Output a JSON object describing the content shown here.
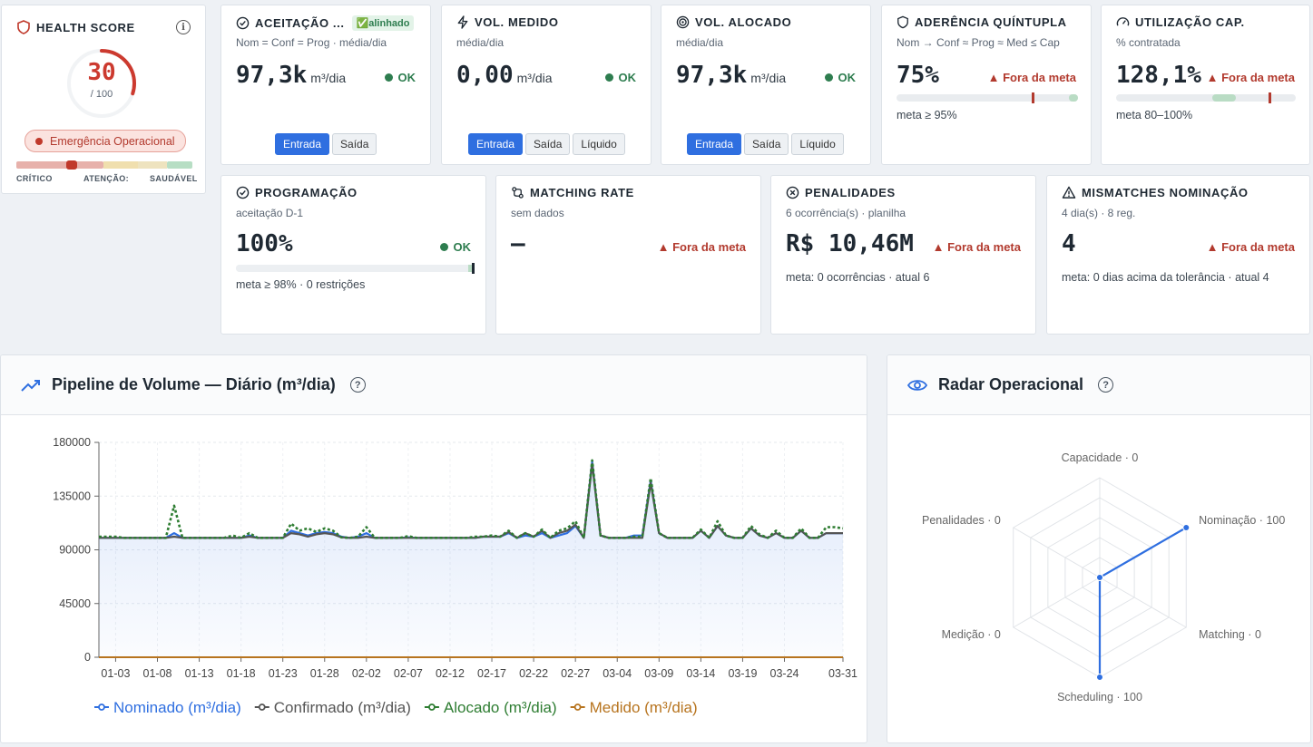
{
  "health": {
    "title": "HEALTH SCORE",
    "score": "30",
    "max": "/ 100",
    "score_fraction": 0.3,
    "status": "Emergência Operacional",
    "scale_labels": [
      "CRÍTICO",
      "ATENÇÃO:",
      "SAUDÁVEL"
    ],
    "colors": {
      "critical": "#d9534f",
      "ring": "#cc3a2f"
    }
  },
  "kpis": {
    "aceitacao": {
      "title": "ACEITAÇÃO ...",
      "badge": "✅alinhado",
      "subtitle": "Nom = Conf = Prog · média/dia",
      "value": "97,3k",
      "unit": "m³/dia",
      "status": "OK",
      "tabs": [
        "Entrada",
        "Saída"
      ],
      "active_tab": "Entrada"
    },
    "vol_medido": {
      "title": "VOL. MEDIDO",
      "subtitle": "média/dia",
      "value": "0,00",
      "unit": "m³/dia",
      "status": "OK",
      "tabs": [
        "Entrada",
        "Saída",
        "Líquido"
      ],
      "active_tab": "Entrada"
    },
    "vol_alocado": {
      "title": "VOL. ALOCADO",
      "subtitle": "média/dia",
      "value": "97,3k",
      "unit": "m³/dia",
      "status": "OK",
      "tabs": [
        "Entrada",
        "Saída",
        "Líquido"
      ],
      "active_tab": "Entrada"
    },
    "aderencia": {
      "title": "ADERÊNCIA QUÍNTUPLA",
      "subtitle": "Nom → Conf ≈ Prog ≈ Med ≤ Cap",
      "value": "75%",
      "status": "▲ Fora da meta",
      "meta": "meta ≥ 95%",
      "progress_value": 0.75,
      "target_min": 0.95,
      "target_max": 1.0
    },
    "utilizacao": {
      "title": "UTILIZAÇÃO CAP.",
      "subtitle": "% contratada",
      "value": "128,1%",
      "status": "▲ Fora da meta",
      "meta": "meta 80–100%",
      "progress_value": 1.281,
      "target_min": 0.8,
      "target_max": 1.0
    },
    "programacao": {
      "title": "PROGRAMAÇÃO",
      "subtitle": "aceitação D-1",
      "value": "100%",
      "status": "OK",
      "meta": "meta ≥ 98% · 0 restrições",
      "progress_value": 1.0,
      "target_min": 0.98
    },
    "matching": {
      "title": "MATCHING RATE",
      "subtitle": "sem dados",
      "value": "—",
      "status": "▲ Fora da meta"
    },
    "penalidades": {
      "title": "PENALIDADES",
      "subtitle": "6 ocorrência(s) · planilha",
      "value": "R$ 10,46M",
      "status": "▲ Fora da meta",
      "meta": "meta: 0 ocorrências · atual 6"
    },
    "mismatches": {
      "title": "MISMATCHES NOMINAÇÃO",
      "subtitle": "4 dia(s) · 8 reg.",
      "value": "4",
      "status": "▲ Fora da meta",
      "meta": "meta: 0 dias acima da tolerância · atual 4"
    }
  },
  "pipeline": {
    "title": "Pipeline de Volume — Diário (m³/dia)",
    "help": "?"
  },
  "radar": {
    "title": "Radar Operacional",
    "help": "?"
  },
  "chart_data": [
    {
      "type": "line",
      "x": [
        "01-01",
        "01-02",
        "01-03",
        "01-04",
        "01-05",
        "01-06",
        "01-07",
        "01-08",
        "01-09",
        "01-10",
        "01-11",
        "01-12",
        "01-13",
        "01-14",
        "01-15",
        "01-16",
        "01-17",
        "01-18",
        "01-19",
        "01-20",
        "01-21",
        "01-22",
        "01-23",
        "01-24",
        "01-25",
        "01-26",
        "01-27",
        "01-28",
        "01-29",
        "01-30",
        "01-31",
        "02-01",
        "02-02",
        "02-03",
        "02-04",
        "02-05",
        "02-06",
        "02-07",
        "02-08",
        "02-09",
        "02-10",
        "02-11",
        "02-12",
        "02-13",
        "02-14",
        "02-15",
        "02-16",
        "02-17",
        "02-18",
        "02-19",
        "02-20",
        "02-21",
        "02-22",
        "02-23",
        "02-24",
        "02-25",
        "02-26",
        "02-27",
        "02-28",
        "03-01",
        "03-02",
        "03-03",
        "03-04",
        "03-05",
        "03-06",
        "03-07",
        "03-08",
        "03-09",
        "03-10",
        "03-11",
        "03-12",
        "03-13",
        "03-14",
        "03-15",
        "03-16",
        "03-17",
        "03-18",
        "03-19",
        "03-20",
        "03-21",
        "03-22",
        "03-23",
        "03-24",
        "03-25",
        "03-26",
        "03-27",
        "03-28",
        "03-29",
        "03-30",
        "03-31"
      ],
      "x_tick_labels": [
        "01-03",
        "01-08",
        "01-13",
        "01-18",
        "01-23",
        "01-28",
        "02-02",
        "02-07",
        "02-12",
        "02-17",
        "02-22",
        "02-27",
        "03-04",
        "03-09",
        "03-14",
        "03-19",
        "03-24",
        "03-31"
      ],
      "ylim": [
        0,
        180000
      ],
      "y_ticks": [
        0,
        45000,
        90000,
        135000,
        180000
      ],
      "y_tick_labels": [
        "0",
        "45000",
        "90000",
        "135000",
        "180000"
      ],
      "grid": true,
      "legend": "bottom",
      "series": [
        {
          "name": "Nominado (m³/dia)",
          "color": "#2f6fe0",
          "values": [
            100000,
            100000,
            100000,
            100000,
            100000,
            100000,
            100000,
            100000,
            100000,
            104000,
            100000,
            100000,
            100000,
            100000,
            100000,
            100000,
            100000,
            100000,
            102000,
            100000,
            100000,
            100000,
            100000,
            106000,
            104000,
            102000,
            104000,
            105000,
            104000,
            101000,
            100000,
            101000,
            104000,
            100000,
            100000,
            100000,
            100000,
            100500,
            100000,
            100000,
            100000,
            100000,
            100000,
            100000,
            100000,
            100000,
            101000,
            101000,
            101000,
            104000,
            100000,
            102000,
            101000,
            104000,
            100000,
            102000,
            104000,
            110000,
            100000,
            164000,
            102000,
            100000,
            100000,
            100000,
            102000,
            102000,
            148000,
            104000,
            100000,
            100000,
            100000,
            100000,
            106000,
            100000,
            110000,
            102000,
            100000,
            100000,
            108000,
            102000,
            100000,
            104000,
            100000,
            100000,
            106000,
            100000,
            100000,
            104000,
            104000,
            104000
          ]
        },
        {
          "name": "Confirmado (m³/dia)",
          "color": "#555555",
          "values": [
            100000,
            100000,
            100000,
            100000,
            100000,
            100000,
            100000,
            100000,
            100000,
            101000,
            100000,
            100000,
            100000,
            100000,
            100000,
            100000,
            100000,
            100000,
            101000,
            100000,
            100000,
            100000,
            100000,
            104000,
            103000,
            101000,
            103000,
            104000,
            103000,
            100500,
            100000,
            100000,
            101000,
            100000,
            100000,
            100000,
            100000,
            100000,
            100000,
            100000,
            100000,
            100000,
            100000,
            100000,
            100000,
            100000,
            101000,
            101000,
            101000,
            105000,
            100000,
            104000,
            101000,
            106000,
            100000,
            104000,
            106000,
            111000,
            100000,
            162000,
            102000,
            100000,
            100000,
            100000,
            100000,
            100000,
            146000,
            104000,
            100000,
            100000,
            100000,
            100000,
            106000,
            100000,
            110000,
            102000,
            100000,
            100000,
            108000,
            102000,
            100000,
            104000,
            100000,
            100000,
            106000,
            100000,
            100000,
            104000,
            104000,
            104000
          ]
        },
        {
          "name": "Alocado (m³/dia)",
          "color": "#2e7d32",
          "values": [
            101000,
            101000,
            101000,
            100000,
            100000,
            100000,
            100000,
            100000,
            100000,
            127000,
            100000,
            100000,
            100000,
            100000,
            100000,
            100000,
            102000,
            100000,
            104000,
            100000,
            100000,
            100000,
            100000,
            112000,
            106000,
            108000,
            105000,
            108000,
            106000,
            100500,
            100000,
            101000,
            109000,
            100000,
            100000,
            100000,
            100000,
            101500,
            100000,
            100000,
            100000,
            100000,
            100000,
            100000,
            100000,
            101000,
            101000,
            102000,
            101000,
            106000,
            100000,
            104000,
            101000,
            107000,
            100000,
            106000,
            108000,
            114000,
            100000,
            165000,
            102000,
            100000,
            100000,
            100000,
            101000,
            101000,
            150000,
            104000,
            100000,
            100000,
            100000,
            100000,
            107000,
            100000,
            114000,
            102000,
            100000,
            100000,
            110000,
            103000,
            100000,
            106000,
            100000,
            100000,
            108000,
            100000,
            100000,
            109000,
            109000,
            108000
          ]
        },
        {
          "name": "Medido (m³/dia)",
          "color": "#b7741f",
          "values": [
            0,
            0,
            0,
            0,
            0,
            0,
            0,
            0,
            0,
            0,
            0,
            0,
            0,
            0,
            0,
            0,
            0,
            0,
            0,
            0,
            0,
            0,
            0,
            0,
            0,
            0,
            0,
            0,
            0,
            0,
            0,
            0,
            0,
            0,
            0,
            0,
            0,
            0,
            0,
            0,
            0,
            0,
            0,
            0,
            0,
            0,
            0,
            0,
            0,
            0,
            0,
            0,
            0,
            0,
            0,
            0,
            0,
            0,
            0,
            0,
            0,
            0,
            0,
            0,
            0,
            0,
            0,
            0,
            0,
            0,
            0,
            0,
            0,
            0,
            0,
            0,
            0,
            0,
            0,
            0,
            0,
            0,
            0,
            0,
            0,
            0,
            0,
            0,
            0,
            0
          ]
        }
      ]
    },
    {
      "type": "radar",
      "categories": [
        "Capacidade",
        "Nominação",
        "Matching",
        "Scheduling",
        "Medição",
        "Penalidades"
      ],
      "values": [
        0,
        100,
        0,
        100,
        0,
        0
      ],
      "labels": [
        "Capacidade · 0",
        "Nominação · 100",
        "Matching · 0",
        "Scheduling · 100",
        "Medição · 0",
        "Penalidades · 0"
      ],
      "range": [
        0,
        100
      ],
      "color": "#2f6fe0"
    }
  ]
}
